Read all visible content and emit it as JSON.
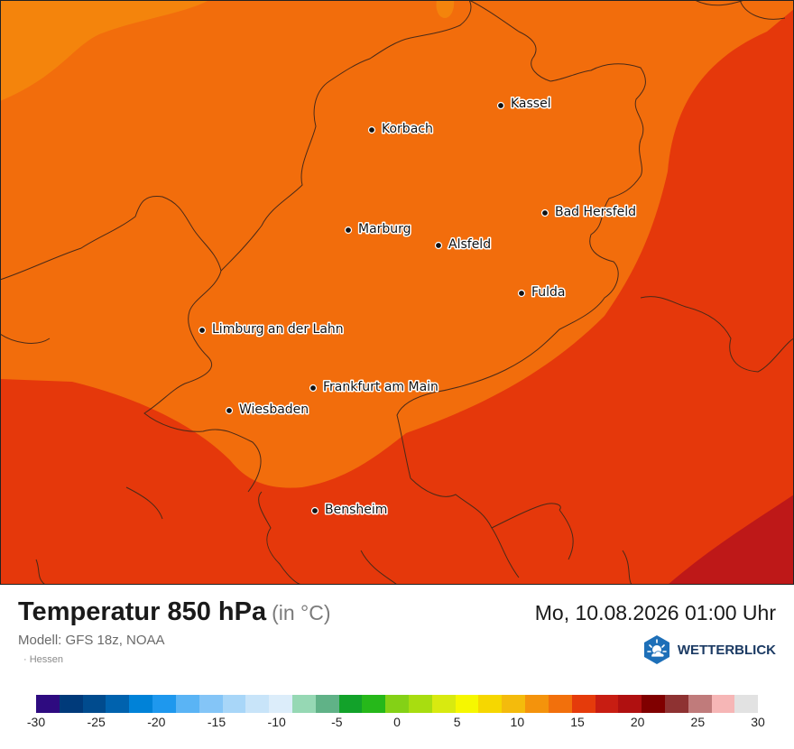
{
  "map": {
    "cities": [
      {
        "name": "Kassel"
      },
      {
        "name": "Korbach"
      },
      {
        "name": "Bad Hersfeld"
      },
      {
        "name": "Marburg"
      },
      {
        "name": "Alsfeld"
      },
      {
        "name": "Fulda"
      },
      {
        "name": "Limburg an der Lahn"
      },
      {
        "name": "Frankfurt am Main"
      },
      {
        "name": "Wiesbaden"
      },
      {
        "name": "Bensheim"
      }
    ],
    "field_colors": {
      "band_10_12": "#f4840c",
      "band_12_14": "#f26d0c",
      "band_14_16": "#e5380b",
      "band_16_18": "#be1818"
    },
    "border_color": "#4a2a18"
  },
  "header": {
    "title": "Temperatur 850 hPa",
    "unit": "(in °C)",
    "datetime": "Mo, 10.08.2026 01:00 Uhr",
    "model": "Modell: GFS 18z, NOAA",
    "region": "· Hessen"
  },
  "brand": {
    "name": "WETTERBLICK",
    "logo_icon": "sun-cloud-hexagon-icon",
    "logo_color": "#1d6fb8"
  },
  "legend": {
    "colors": [
      "#2e0b80",
      "#003a7a",
      "#004b8e",
      "#0062ae",
      "#0082d8",
      "#1e98ee",
      "#5ab4f5",
      "#84c5f7",
      "#a8d6f8",
      "#c8e4f9",
      "#dcedfa",
      "#96d8b4",
      "#60b287",
      "#12a22a",
      "#26b81a",
      "#84d116",
      "#a8dd10",
      "#d8ea10",
      "#f6f700",
      "#f6d700",
      "#f4bb0c",
      "#f4930c",
      "#f2700c",
      "#e53b0b",
      "#c81d12",
      "#b01010",
      "#800000",
      "#8e3232",
      "#c07b7b",
      "#f6b6b6",
      "#e2e2e2"
    ],
    "tick_values": [
      -30,
      -25,
      -20,
      -15,
      -10,
      -5,
      0,
      5,
      10,
      15,
      20,
      25,
      30
    ],
    "tick_labels": [
      "-30",
      "-25",
      "-20",
      "-15",
      "-10",
      "-5",
      "0",
      "5",
      "10",
      "15",
      "20",
      "25",
      "30"
    ]
  }
}
